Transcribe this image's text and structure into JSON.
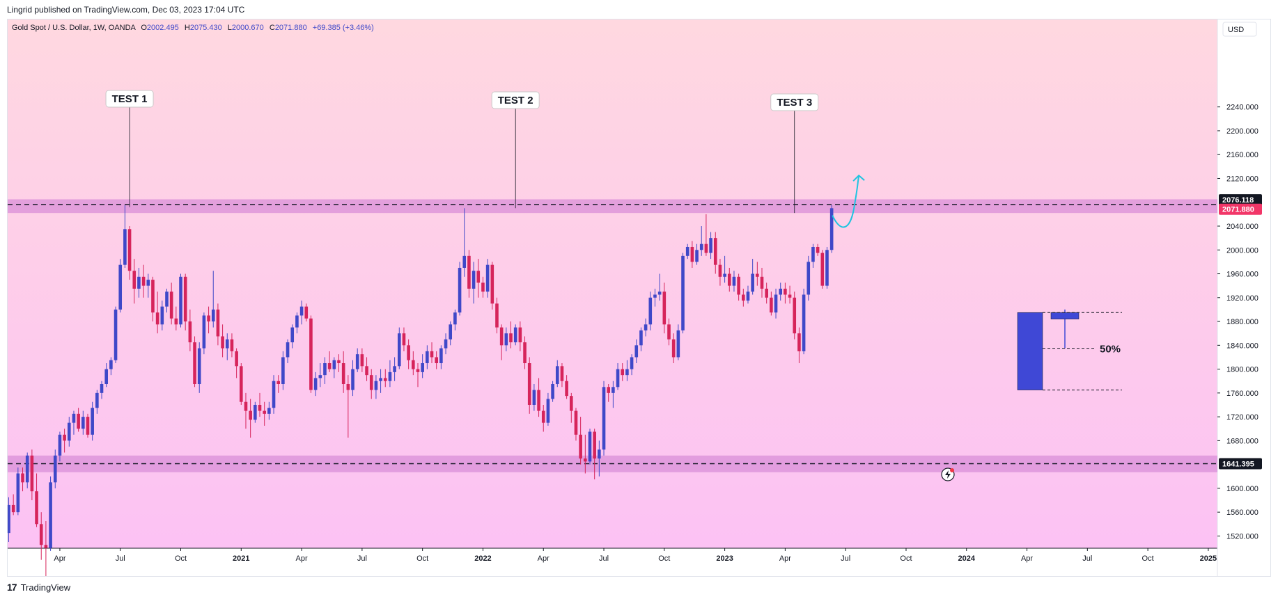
{
  "header": {
    "publisher_line": "Lingrid published on TradingView.com, Dec 03, 2023 17:04 UTC"
  },
  "legend": {
    "symbol": "Gold Spot / U.S. Dollar, 1W, OANDA",
    "open_label": "O",
    "open": "2002.495",
    "high_label": "H",
    "high": "2075.430",
    "low_label": "L",
    "low": "2000.670",
    "close_label": "C",
    "close": "2071.880",
    "change": "+69.385 (+3.46%)"
  },
  "currency": "USD",
  "footer": {
    "brand": "TradingView",
    "logo_text": "17"
  },
  "colors": {
    "up": "#3f48c8",
    "down": "#d6245b",
    "zone": "#d98fd8",
    "price_badge": "#f23668",
    "level_badge": "#131722",
    "arrow": "#1fc4e0"
  },
  "chart_data": {
    "type": "candlestick",
    "title": "Gold Spot / U.S. Dollar, 1W, OANDA",
    "ylim": [
      1500,
      2260
    ],
    "y_ticks": [
      1520,
      1560,
      1600,
      1640,
      1680,
      1720,
      1760,
      1800,
      1840,
      1880,
      1920,
      1960,
      2000,
      2040,
      2080,
      2120,
      2160,
      2200,
      2240
    ],
    "y_tick_labels": [
      "1520.000",
      "1560.000",
      "1600.000",
      "1680.000",
      "1720.000",
      "1760.000",
      "1800.000",
      "1840.000",
      "1880.000",
      "1920.000",
      "1960.000",
      "2000.000",
      "2040.000",
      "2120.000",
      "2160.000",
      "2200.000",
      "2240.000"
    ],
    "y_tick_values": [
      1520,
      1560,
      1600,
      1680,
      1720,
      1760,
      1800,
      1840,
      1880,
      1920,
      1960,
      2000,
      2040,
      2120,
      2160,
      2200,
      2240
    ],
    "x_ticks": [
      {
        "label": "Apr",
        "week": 11,
        "bold": false
      },
      {
        "label": "Jul",
        "week": 24,
        "bold": false
      },
      {
        "label": "Oct",
        "week": 37,
        "bold": false
      },
      {
        "label": "2021",
        "week": 50,
        "bold": true
      },
      {
        "label": "Apr",
        "week": 63,
        "bold": false
      },
      {
        "label": "Jul",
        "week": 76,
        "bold": false
      },
      {
        "label": "Oct",
        "week": 89,
        "bold": false
      },
      {
        "label": "2022",
        "week": 102,
        "bold": true
      },
      {
        "label": "Apr",
        "week": 115,
        "bold": false
      },
      {
        "label": "Jul",
        "week": 128,
        "bold": false
      },
      {
        "label": "Oct",
        "week": 141,
        "bold": false
      },
      {
        "label": "2023",
        "week": 154,
        "bold": true
      },
      {
        "label": "Apr",
        "week": 167,
        "bold": false
      },
      {
        "label": "Jul",
        "week": 180,
        "bold": false
      },
      {
        "label": "Oct",
        "week": 193,
        "bold": false
      },
      {
        "label": "2024",
        "week": 206,
        "bold": true
      },
      {
        "label": "Apr",
        "week": 219,
        "bold": false
      },
      {
        "label": "Jul",
        "week": 232,
        "bold": false
      },
      {
        "label": "Oct",
        "week": 245,
        "bold": false
      },
      {
        "label": "2025",
        "week": 258,
        "bold": true
      }
    ],
    "resistance_level": 2076.118,
    "resistance_zone": [
      2062,
      2085
    ],
    "support_level": 1641.395,
    "support_zone": [
      1627,
      1655
    ],
    "last_price": 2071.88,
    "level_labels": [
      "2076.118",
      "2071.880",
      "1641.395"
    ],
    "annotations": [
      {
        "label": "TEST 1",
        "week": 26,
        "price": 2072
      },
      {
        "label": "TEST 2",
        "week": 109,
        "price": 2070
      },
      {
        "label": "TEST 3",
        "week": 169,
        "price": 2062
      }
    ],
    "projection_label": "50%",
    "projection": {
      "big_bar": [
        1895,
        1765
      ],
      "small_open": 1895,
      "small_close": 1884,
      "small_wick_top": 1900,
      "small_wick_bottom": 1835,
      "mid_level": 1835,
      "bottom_level": 1765,
      "top_level": 1895
    },
    "candles": [
      [
        1525,
        1585,
        1510,
        1572
      ],
      [
        1572,
        1590,
        1555,
        1560
      ],
      [
        1560,
        1635,
        1555,
        1625
      ],
      [
        1625,
        1635,
        1595,
        1610
      ],
      [
        1610,
        1660,
        1600,
        1655
      ],
      [
        1655,
        1665,
        1580,
        1595
      ],
      [
        1595,
        1625,
        1535,
        1540
      ],
      [
        1540,
        1560,
        1480,
        1505
      ],
      [
        1505,
        1545,
        1450,
        1500
      ],
      [
        1500,
        1620,
        1495,
        1610
      ],
      [
        1610,
        1665,
        1600,
        1655
      ],
      [
        1655,
        1695,
        1645,
        1690
      ],
      [
        1690,
        1700,
        1660,
        1680
      ],
      [
        1680,
        1720,
        1670,
        1710
      ],
      [
        1710,
        1730,
        1690,
        1725
      ],
      [
        1725,
        1735,
        1695,
        1700
      ],
      [
        1700,
        1730,
        1690,
        1720
      ],
      [
        1720,
        1725,
        1685,
        1690
      ],
      [
        1690,
        1745,
        1680,
        1735
      ],
      [
        1735,
        1765,
        1725,
        1760
      ],
      [
        1760,
        1780,
        1750,
        1775
      ],
      [
        1775,
        1810,
        1770,
        1800
      ],
      [
        1800,
        1820,
        1790,
        1815
      ],
      [
        1815,
        1905,
        1810,
        1900
      ],
      [
        1900,
        1985,
        1895,
        1975
      ],
      [
        1975,
        2075,
        1970,
        2035
      ],
      [
        2035,
        2040,
        1950,
        1965
      ],
      [
        1965,
        1985,
        1910,
        1935
      ],
      [
        1935,
        1970,
        1920,
        1955
      ],
      [
        1955,
        1975,
        1920,
        1940
      ],
      [
        1940,
        1960,
        1920,
        1950
      ],
      [
        1950,
        1955,
        1880,
        1895
      ],
      [
        1895,
        1930,
        1860,
        1875
      ],
      [
        1875,
        1915,
        1865,
        1905
      ],
      [
        1905,
        1935,
        1895,
        1930
      ],
      [
        1930,
        1945,
        1875,
        1885
      ],
      [
        1885,
        1905,
        1865,
        1875
      ],
      [
        1875,
        1960,
        1870,
        1955
      ],
      [
        1955,
        1960,
        1865,
        1880
      ],
      [
        1880,
        1900,
        1830,
        1845
      ],
      [
        1845,
        1855,
        1770,
        1775
      ],
      [
        1775,
        1845,
        1760,
        1835
      ],
      [
        1835,
        1895,
        1825,
        1890
      ],
      [
        1890,
        1905,
        1860,
        1880
      ],
      [
        1880,
        1965,
        1870,
        1900
      ],
      [
        1900,
        1910,
        1840,
        1855
      ],
      [
        1855,
        1875,
        1820,
        1835
      ],
      [
        1835,
        1860,
        1815,
        1850
      ],
      [
        1850,
        1860,
        1820,
        1830
      ],
      [
        1830,
        1835,
        1785,
        1805
      ],
      [
        1805,
        1810,
        1740,
        1745
      ],
      [
        1745,
        1760,
        1700,
        1730
      ],
      [
        1730,
        1750,
        1685,
        1715
      ],
      [
        1715,
        1745,
        1710,
        1740
      ],
      [
        1740,
        1760,
        1720,
        1730
      ],
      [
        1730,
        1745,
        1705,
        1725
      ],
      [
        1725,
        1745,
        1715,
        1735
      ],
      [
        1735,
        1790,
        1725,
        1780
      ],
      [
        1780,
        1790,
        1760,
        1775
      ],
      [
        1775,
        1830,
        1765,
        1820
      ],
      [
        1820,
        1850,
        1810,
        1845
      ],
      [
        1845,
        1875,
        1835,
        1870
      ],
      [
        1870,
        1895,
        1860,
        1890
      ],
      [
        1890,
        1915,
        1875,
        1905
      ],
      [
        1905,
        1910,
        1880,
        1885
      ],
      [
        1885,
        1890,
        1760,
        1765
      ],
      [
        1765,
        1795,
        1755,
        1785
      ],
      [
        1785,
        1810,
        1770,
        1790
      ],
      [
        1790,
        1820,
        1775,
        1810
      ],
      [
        1810,
        1830,
        1795,
        1800
      ],
      [
        1800,
        1820,
        1785,
        1815
      ],
      [
        1815,
        1825,
        1795,
        1810
      ],
      [
        1810,
        1830,
        1760,
        1775
      ],
      [
        1775,
        1790,
        1685,
        1765
      ],
      [
        1765,
        1815,
        1755,
        1800
      ],
      [
        1800,
        1835,
        1795,
        1825
      ],
      [
        1825,
        1835,
        1795,
        1805
      ],
      [
        1805,
        1820,
        1780,
        1790
      ],
      [
        1790,
        1800,
        1750,
        1765
      ],
      [
        1765,
        1790,
        1750,
        1780
      ],
      [
        1780,
        1800,
        1760,
        1785
      ],
      [
        1785,
        1800,
        1770,
        1780
      ],
      [
        1780,
        1815,
        1770,
        1795
      ],
      [
        1795,
        1820,
        1780,
        1805
      ],
      [
        1805,
        1870,
        1800,
        1860
      ],
      [
        1860,
        1870,
        1830,
        1840
      ],
      [
        1840,
        1850,
        1800,
        1815
      ],
      [
        1815,
        1830,
        1790,
        1800
      ],
      [
        1800,
        1810,
        1770,
        1795
      ],
      [
        1795,
        1825,
        1785,
        1810
      ],
      [
        1810,
        1840,
        1800,
        1830
      ],
      [
        1830,
        1845,
        1810,
        1820
      ],
      [
        1820,
        1830,
        1800,
        1810
      ],
      [
        1810,
        1840,
        1800,
        1835
      ],
      [
        1835,
        1860,
        1825,
        1850
      ],
      [
        1850,
        1880,
        1840,
        1875
      ],
      [
        1875,
        1900,
        1865,
        1895
      ],
      [
        1895,
        1980,
        1890,
        1970
      ],
      [
        1970,
        2070,
        1955,
        1990
      ],
      [
        1990,
        2000,
        1920,
        1935
      ],
      [
        1935,
        1980,
        1910,
        1965
      ],
      [
        1965,
        1985,
        1920,
        1945
      ],
      [
        1945,
        1955,
        1920,
        1930
      ],
      [
        1930,
        1985,
        1920,
        1975
      ],
      [
        1975,
        1980,
        1900,
        1910
      ],
      [
        1910,
        1920,
        1860,
        1870
      ],
      [
        1870,
        1875,
        1815,
        1840
      ],
      [
        1840,
        1870,
        1830,
        1860
      ],
      [
        1860,
        1880,
        1835,
        1845
      ],
      [
        1845,
        1875,
        1840,
        1870
      ],
      [
        1870,
        1880,
        1830,
        1845
      ],
      [
        1845,
        1855,
        1800,
        1810
      ],
      [
        1810,
        1820,
        1725,
        1740
      ],
      [
        1740,
        1775,
        1730,
        1765
      ],
      [
        1765,
        1785,
        1720,
        1730
      ],
      [
        1730,
        1740,
        1695,
        1710
      ],
      [
        1710,
        1760,
        1705,
        1750
      ],
      [
        1750,
        1780,
        1745,
        1775
      ],
      [
        1775,
        1815,
        1770,
        1805
      ],
      [
        1805,
        1810,
        1770,
        1780
      ],
      [
        1780,
        1790,
        1750,
        1755
      ],
      [
        1755,
        1760,
        1710,
        1730
      ],
      [
        1730,
        1735,
        1680,
        1690
      ],
      [
        1690,
        1720,
        1640,
        1650
      ],
      [
        1650,
        1690,
        1625,
        1645
      ],
      [
        1645,
        1700,
        1640,
        1695
      ],
      [
        1695,
        1700,
        1615,
        1650
      ],
      [
        1650,
        1680,
        1620,
        1665
      ],
      [
        1665,
        1780,
        1655,
        1770
      ],
      [
        1770,
        1775,
        1745,
        1760
      ],
      [
        1760,
        1780,
        1735,
        1770
      ],
      [
        1770,
        1810,
        1765,
        1800
      ],
      [
        1800,
        1810,
        1780,
        1790
      ],
      [
        1790,
        1815,
        1780,
        1800
      ],
      [
        1800,
        1825,
        1790,
        1820
      ],
      [
        1820,
        1850,
        1810,
        1840
      ],
      [
        1840,
        1870,
        1830,
        1865
      ],
      [
        1865,
        1885,
        1855,
        1875
      ],
      [
        1875,
        1930,
        1865,
        1920
      ],
      [
        1920,
        1935,
        1905,
        1925
      ],
      [
        1925,
        1960,
        1915,
        1930
      ],
      [
        1930,
        1945,
        1860,
        1875
      ],
      [
        1875,
        1885,
        1840,
        1850
      ],
      [
        1850,
        1860,
        1810,
        1820
      ],
      [
        1820,
        1875,
        1815,
        1865
      ],
      [
        1865,
        1995,
        1860,
        1990
      ],
      [
        1990,
        2010,
        1985,
        2005
      ],
      [
        2005,
        2015,
        1970,
        1980
      ],
      [
        1980,
        2010,
        1975,
        2000
      ],
      [
        2000,
        2040,
        1990,
        2010
      ],
      [
        2010,
        2060,
        1990,
        1995
      ],
      [
        1995,
        2030,
        1985,
        2020
      ],
      [
        2020,
        2030,
        1960,
        1975
      ],
      [
        1975,
        1985,
        1940,
        1955
      ],
      [
        1955,
        1990,
        1945,
        1960
      ],
      [
        1960,
        1970,
        1930,
        1940
      ],
      [
        1940,
        1965,
        1930,
        1955
      ],
      [
        1955,
        1960,
        1915,
        1925
      ],
      [
        1925,
        1935,
        1905,
        1915
      ],
      [
        1915,
        1940,
        1910,
        1930
      ],
      [
        1930,
        1985,
        1925,
        1960
      ],
      [
        1960,
        1980,
        1940,
        1955
      ],
      [
        1955,
        1970,
        1920,
        1935
      ],
      [
        1935,
        1945,
        1910,
        1920
      ],
      [
        1920,
        1930,
        1890,
        1895
      ],
      [
        1895,
        1935,
        1885,
        1925
      ],
      [
        1925,
        1945,
        1915,
        1935
      ],
      [
        1935,
        1945,
        1910,
        1925
      ],
      [
        1925,
        1940,
        1910,
        1920
      ],
      [
        1920,
        1930,
        1850,
        1860
      ],
      [
        1860,
        1870,
        1810,
        1830
      ],
      [
        1830,
        1935,
        1825,
        1925
      ],
      [
        1925,
        1990,
        1915,
        1980
      ],
      [
        1980,
        2010,
        1970,
        2005
      ],
      [
        2005,
        2010,
        1990,
        1995
      ],
      [
        1995,
        2000,
        1935,
        1940
      ],
      [
        1940,
        2005,
        1935,
        2000
      ],
      [
        2000,
        2075,
        1995,
        2070
      ]
    ]
  }
}
